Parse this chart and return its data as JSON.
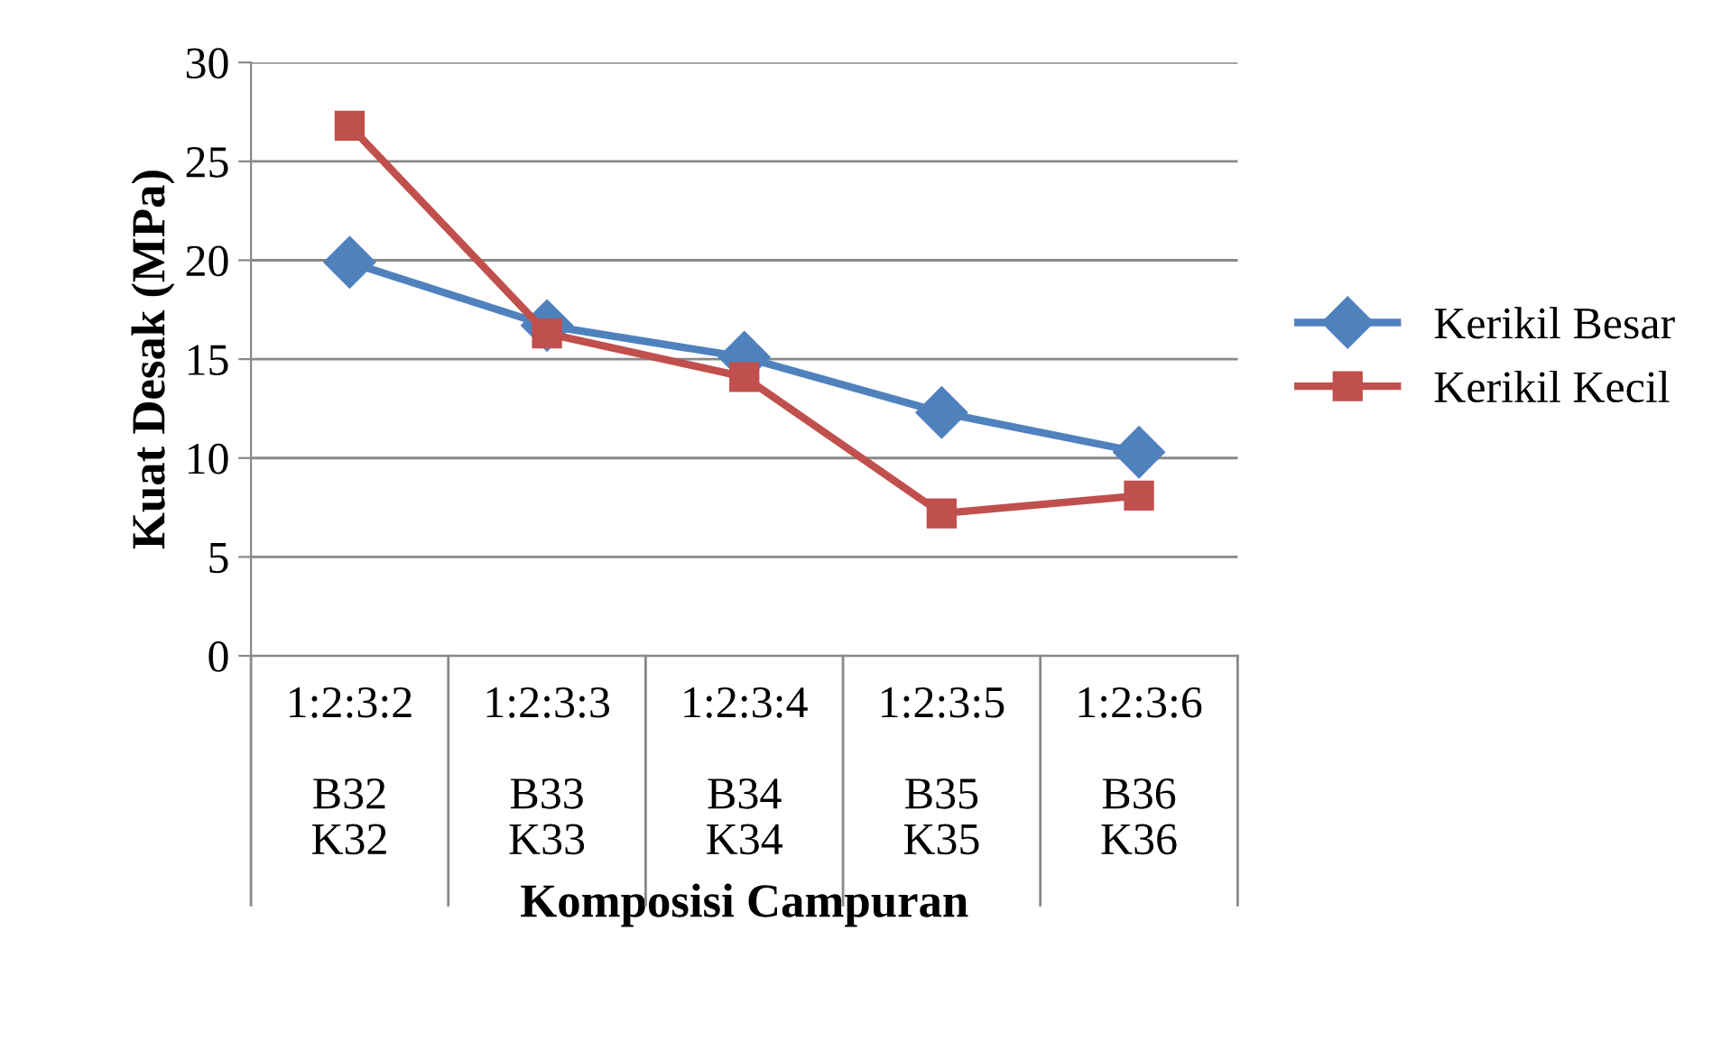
{
  "chart_data": {
    "type": "line",
    "xlabel": "Komposisi Campuran",
    "ylabel": "Kuat Desak (MPa)",
    "categories": [
      "1:2:3:2\n\nB32\nK32",
      "1:2:3:3\n\nB33\nK33",
      "1:2:3:4\n\nB34\nK34",
      "1:2:3:5\n\nB35\nK35",
      "1:2:3:6\n\nB36\nK36"
    ],
    "series": [
      {
        "name": "Kerikil Besar",
        "color": "#4f81bd",
        "marker": "diamond",
        "values": [
          19.9,
          16.7,
          15.1,
          12.3,
          10.3
        ]
      },
      {
        "name": "Kerikil Kecil",
        "color": "#c0504d",
        "marker": "square",
        "values": [
          26.8,
          16.3,
          14.1,
          7.2,
          8.1
        ]
      }
    ],
    "ylim": [
      0,
      30
    ],
    "yticks": [
      0,
      5,
      10,
      15,
      20,
      25,
      30
    ],
    "grid": "y",
    "legend": "right"
  }
}
